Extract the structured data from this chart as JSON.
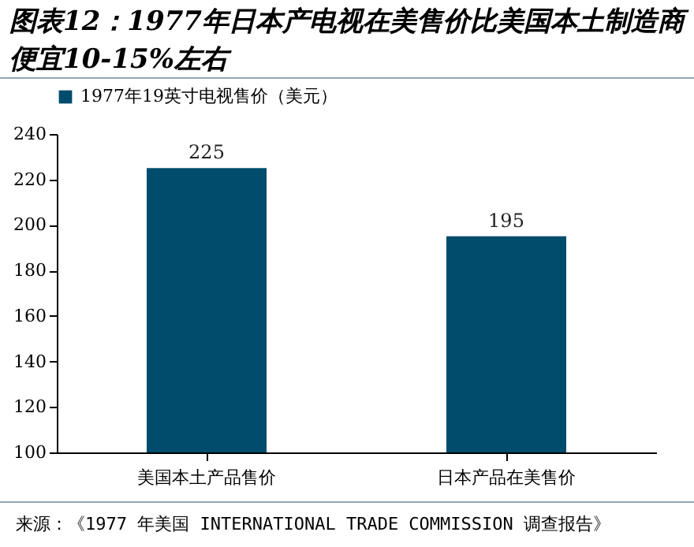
{
  "chart_data": {
    "type": "bar",
    "title": "图表12：1977年日本产电视在美售价比美国本土制造商便宜10-15%左右",
    "categories": [
      "美国本土产品售价",
      "日本产品在美售价"
    ],
    "series": [
      {
        "name": "1977年19英寸电视售价（美元）",
        "color": "#004c6d",
        "values": [
          225,
          195
        ]
      }
    ],
    "ylim": [
      100,
      240
    ],
    "yticks": [
      100,
      120,
      140,
      160,
      180,
      200,
      220,
      240
    ],
    "grid": false,
    "legend": "top",
    "data_labels": true,
    "annotations": [
      "来源：《1977 年美国 INTERNATIONAL TRADE COMMISSION 调查报告》"
    ]
  }
}
